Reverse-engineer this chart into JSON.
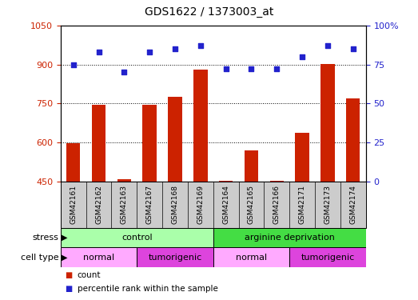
{
  "title": "GDS1622 / 1373003_at",
  "samples": [
    "GSM42161",
    "GSM42162",
    "GSM42163",
    "GSM42167",
    "GSM42168",
    "GSM42169",
    "GSM42164",
    "GSM42165",
    "GSM42166",
    "GSM42171",
    "GSM42173",
    "GSM42174"
  ],
  "counts": [
    597,
    745,
    460,
    745,
    775,
    880,
    453,
    570,
    453,
    638,
    902,
    770
  ],
  "percentiles": [
    75,
    83,
    70,
    83,
    85,
    87,
    72,
    72,
    72,
    80,
    87,
    85
  ],
  "ylim_left": [
    450,
    1050
  ],
  "ylim_right": [
    0,
    100
  ],
  "yticks_left": [
    450,
    600,
    750,
    900,
    1050
  ],
  "yticks_right": [
    0,
    25,
    50,
    75,
    100
  ],
  "yticklabels_left": [
    "450",
    "600",
    "750",
    "900",
    "1050"
  ],
  "yticklabels_right": [
    "0",
    "25",
    "50",
    "75",
    "100%"
  ],
  "bar_color": "#cc2200",
  "dot_color": "#2222cc",
  "grid_color": "#000000",
  "stress_groups": [
    {
      "label": "control",
      "start": 0,
      "end": 6,
      "color": "#aaffaa"
    },
    {
      "label": "arginine deprivation",
      "start": 6,
      "end": 12,
      "color": "#44dd44"
    }
  ],
  "celltype_groups": [
    {
      "label": "normal",
      "start": 0,
      "end": 3,
      "color": "#ffaaff"
    },
    {
      "label": "tumorigenic",
      "start": 3,
      "end": 6,
      "color": "#dd44dd"
    },
    {
      "label": "normal",
      "start": 6,
      "end": 9,
      "color": "#ffaaff"
    },
    {
      "label": "tumorigenic",
      "start": 9,
      "end": 12,
      "color": "#dd44dd"
    }
  ],
  "legend_items": [
    {
      "label": "count",
      "color": "#cc2200"
    },
    {
      "label": "percentile rank within the sample",
      "color": "#2222cc"
    }
  ],
  "tick_color_left": "#cc2200",
  "tick_color_right": "#2222cc",
  "sample_bg_color": "#cccccc",
  "bar_width": 0.55
}
